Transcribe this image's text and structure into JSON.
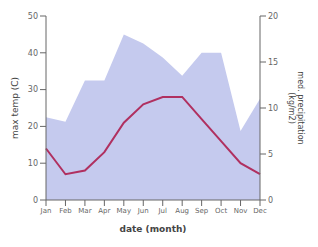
{
  "chart_data": {
    "type": "line",
    "categories": [
      "Jan",
      "Feb",
      "Mar",
      "Apr",
      "May",
      "Jun",
      "Jul",
      "Aug",
      "Sep",
      "Oct",
      "Nov",
      "Dec"
    ],
    "series": [
      {
        "type": "area",
        "axis": "y2",
        "color": "#c5caee",
        "values": [
          9,
          8.5,
          13,
          13,
          18,
          17,
          15.5,
          13.5,
          16,
          16,
          7.5,
          11
        ]
      },
      {
        "type": "line",
        "color": "#b03060",
        "values": [
          14,
          7,
          8,
          13,
          21,
          26,
          28,
          28,
          22,
          16,
          10,
          7
        ]
      }
    ],
    "xlabel": "date (month)",
    "ylabel": "max temp (C)",
    "y2label": "med. precipitation\n(kg/m2)",
    "ylim": [
      0,
      50
    ],
    "yticks": [
      0,
      10,
      20,
      30,
      40,
      50
    ],
    "y2lim": [
      0,
      20
    ],
    "y2ticks": [
      0,
      5,
      10,
      15,
      20
    ],
    "grid": false
  }
}
